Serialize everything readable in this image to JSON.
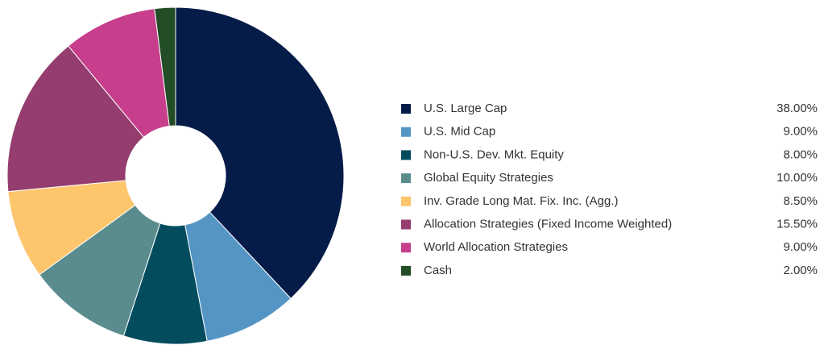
{
  "chart_data": {
    "type": "pie",
    "categories": [
      "U.S. Large Cap",
      "U.S. Mid Cap",
      "Non-U.S. Dev. Mkt. Equity",
      "Global Equity Strategies",
      "Inv. Grade Long Mat. Fix. Inc. (Agg.)",
      "Allocation Strategies (Fixed Income Weighted)",
      "World Allocation Strategies",
      "Cash"
    ],
    "values": [
      38,
      9,
      8,
      10,
      8.5,
      15.5,
      9,
      2
    ],
    "value_labels": [
      "38.00%",
      "9.00%",
      "8.00%",
      "10.00%",
      "8.50%",
      "15.50%",
      "9.00%",
      "2.00%"
    ],
    "colors": [
      "#061c48",
      "#5595c4",
      "#024c5e",
      "#5a8c8e",
      "#fdc56c",
      "#943d6e",
      "#c63e8c",
      "#224d26"
    ],
    "donut": true
  }
}
